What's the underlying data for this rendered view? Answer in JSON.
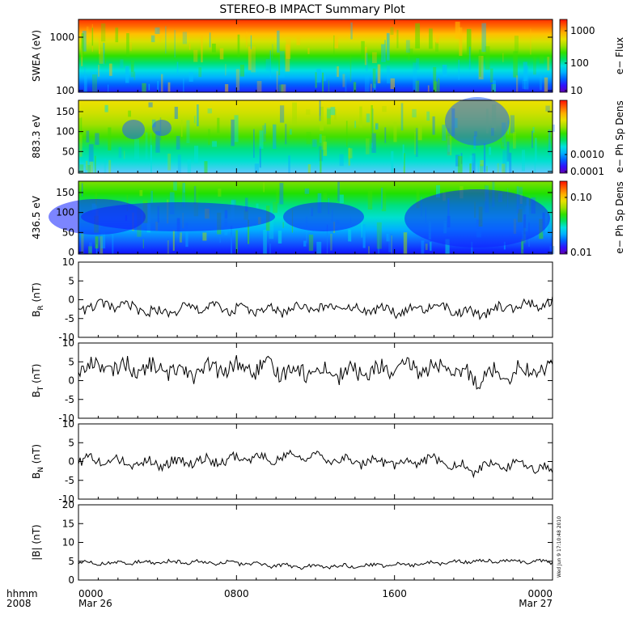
{
  "title": "STEREO-B IMPACT Summary Plot",
  "timestamp": "Wed Jun 9 17:10:48 2010",
  "x_axis": {
    "row1_label": "hhmm",
    "row2_label": "2008",
    "ticks": [
      "0000",
      "0800",
      "1600",
      "0000"
    ],
    "dates": [
      "Mar 26",
      "",
      "",
      "Mar 27"
    ]
  },
  "chart_data": [
    {
      "type": "heatmap",
      "ylabel": "SWEA (eV)",
      "yscale": "log",
      "ylim": [
        100,
        2000
      ],
      "yticks": [
        "1000",
        "100"
      ],
      "colorbar_label": "e− Flux",
      "colorbar_ticks": [
        "1000",
        "100",
        "10"
      ],
      "colorbar_scale": "log",
      "colorbar_range": [
        10,
        2000
      ]
    },
    {
      "type": "heatmap",
      "ylabel": "883.3 eV",
      "ylim": [
        0,
        180
      ],
      "yticks": [
        "150",
        "100",
        "50",
        "0"
      ],
      "colorbar_label": "e− Ph Sp Dens",
      "colorbar_ticks": [
        "0.0010",
        "0.0001"
      ],
      "colorbar_scale": "log",
      "colorbar_range": [
        0.0001,
        0.004
      ]
    },
    {
      "type": "heatmap",
      "ylabel": "436.5 eV",
      "ylim": [
        0,
        180
      ],
      "yticks": [
        "150",
        "100",
        "50",
        "0"
      ],
      "colorbar_label": "e− Ph Sp Dens",
      "colorbar_ticks": [
        "0.10",
        "0.01"
      ],
      "colorbar_scale": "log",
      "colorbar_range": [
        0.01,
        0.2
      ]
    },
    {
      "type": "line",
      "ylabel": "B",
      "ylabel_sub": "R",
      "ylabel_unit": " (nT)",
      "ylim": [
        -10,
        10
      ],
      "yticks": [
        "10",
        "5",
        "0",
        "-5",
        "-10"
      ],
      "x": [
        0,
        2,
        4,
        6,
        8,
        10,
        12,
        14,
        16,
        18,
        20,
        22,
        24
      ],
      "values": [
        -2.0,
        -1.5,
        -3.5,
        -2.0,
        -2.5,
        -3.0,
        -2.0,
        -2.5,
        -3.0,
        -1.5,
        -4.0,
        -1.5,
        -1.0
      ]
    },
    {
      "type": "line",
      "ylabel": "B",
      "ylabel_sub": "T",
      "ylabel_unit": " (nT)",
      "ylim": [
        -10,
        10
      ],
      "yticks": [
        "10",
        "5",
        "0",
        "-5",
        "-10"
      ],
      "x": [
        0,
        2,
        4,
        6,
        8,
        10,
        12,
        14,
        16,
        18,
        20,
        22,
        24
      ],
      "values": [
        4.0,
        3.5,
        3.0,
        2.5,
        3.5,
        3.0,
        2.5,
        2.0,
        3.0,
        3.5,
        1.0,
        2.5,
        3.0
      ]
    },
    {
      "type": "line",
      "ylabel": "B",
      "ylabel_sub": "N",
      "ylabel_unit": " (nT)",
      "ylim": [
        -10,
        10
      ],
      "yticks": [
        "10",
        "5",
        "0",
        "-5",
        "-10"
      ],
      "x": [
        0,
        2,
        4,
        6,
        8,
        10,
        12,
        14,
        16,
        18,
        20,
        22,
        24
      ],
      "values": [
        0.5,
        0.0,
        -0.5,
        0.0,
        0.5,
        1.0,
        1.5,
        0.0,
        -0.5,
        0.5,
        -2.0,
        -1.0,
        -2.0
      ]
    },
    {
      "type": "line",
      "ylabel": "|B| (nT)",
      "ylim": [
        0,
        20
      ],
      "yticks": [
        "20",
        "15",
        "10",
        "5",
        "0"
      ],
      "x": [
        0,
        2,
        4,
        6,
        8,
        10,
        12,
        14,
        16,
        18,
        20,
        22,
        24
      ],
      "values": [
        4.5,
        4.5,
        4.8,
        4.8,
        4.5,
        3.8,
        3.5,
        3.8,
        4.0,
        4.5,
        5.0,
        5.0,
        4.8
      ]
    }
  ]
}
